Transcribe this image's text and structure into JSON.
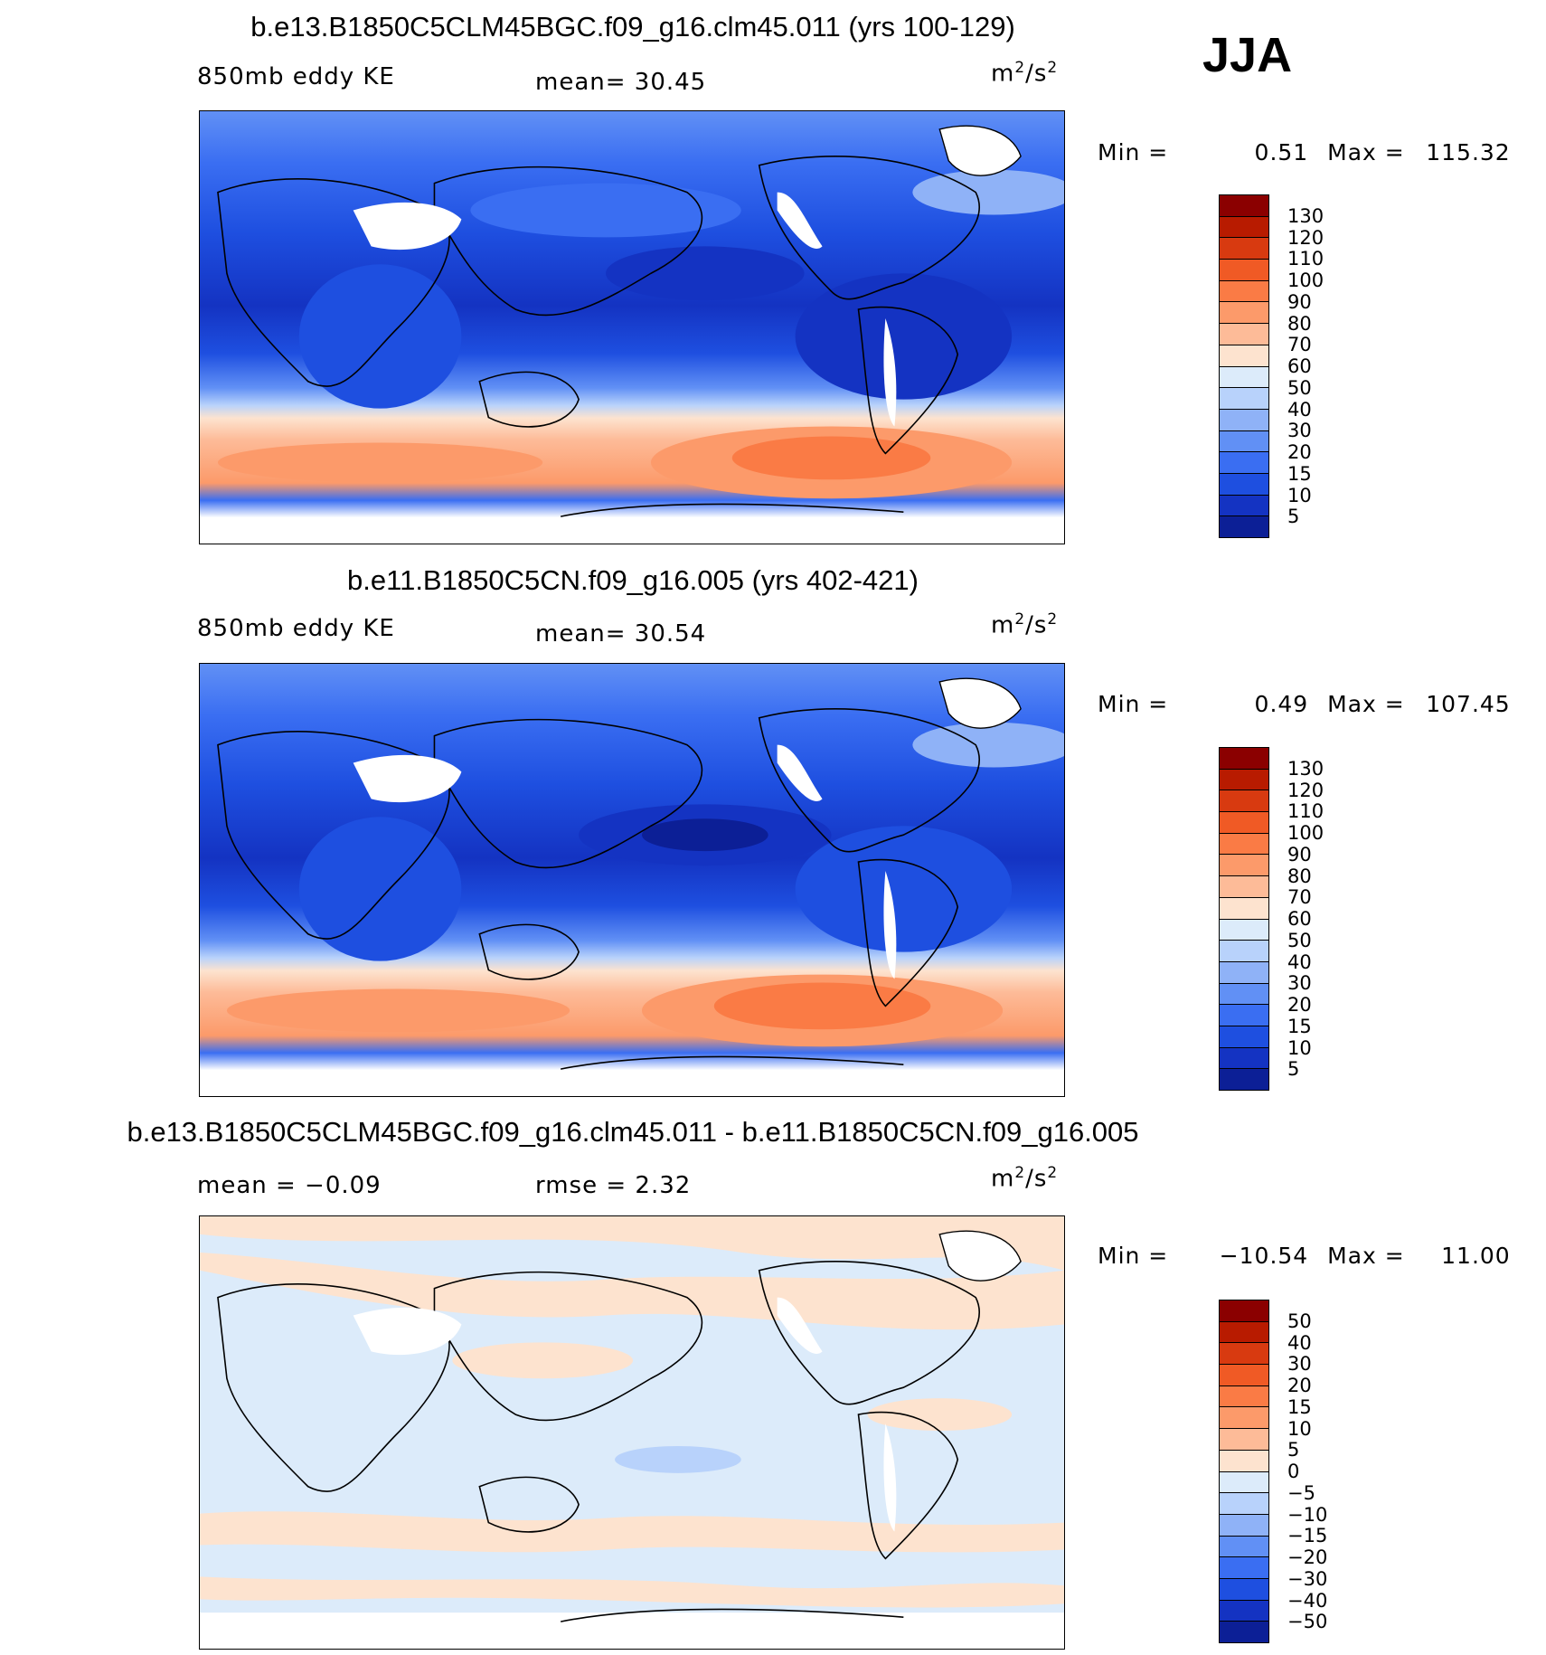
{
  "season": "JJA",
  "panels": [
    {
      "title": "b.e13.B1850C5CLM45BGC.f09_g16.clm45.011 (yrs 100-129)",
      "left_label": "850mb eddy KE",
      "stat_text": "mean=   30.45",
      "units_base": "m",
      "units_sup1": "2",
      "units_mid": "/s",
      "units_sup2": "2",
      "min_label": "Min =",
      "min_value": "0.51",
      "max_label": "Max =",
      "max_value": "115.32",
      "kind": "field",
      "colorbar_labels": [
        "130",
        "120",
        "110",
        "100",
        "90",
        "80",
        "70",
        "60",
        "50",
        "40",
        "30",
        "20",
        "15",
        "10",
        "5"
      ],
      "colorbar_colors": [
        "#8b0000",
        "#b81b00",
        "#d83a10",
        "#f05a25",
        "#fa7b45",
        "#fc9a6a",
        "#fdbb98",
        "#fde3cf",
        "#dcebfa",
        "#b8d2fb",
        "#8fb2f7",
        "#6190f5",
        "#3a6ef2",
        "#1e4fe0",
        "#1433c2",
        "#0c1f96"
      ]
    },
    {
      "title": "b.e11.B1850C5CN.f09_g16.005 (yrs 402-421)",
      "left_label": "850mb eddy KE",
      "stat_text": "mean=   30.54",
      "units_base": "m",
      "units_sup1": "2",
      "units_mid": "/s",
      "units_sup2": "2",
      "min_label": "Min =",
      "min_value": "0.49",
      "max_label": "Max =",
      "max_value": "107.45",
      "kind": "field",
      "colorbar_labels": [
        "130",
        "120",
        "110",
        "100",
        "90",
        "80",
        "70",
        "60",
        "50",
        "40",
        "30",
        "20",
        "15",
        "10",
        "5"
      ],
      "colorbar_colors": [
        "#8b0000",
        "#b81b00",
        "#d83a10",
        "#f05a25",
        "#fa7b45",
        "#fc9a6a",
        "#fdbb98",
        "#fde3cf",
        "#dcebfa",
        "#b8d2fb",
        "#8fb2f7",
        "#6190f5",
        "#3a6ef2",
        "#1e4fe0",
        "#1433c2",
        "#0c1f96"
      ]
    },
    {
      "title": "b.e13.B1850C5CLM45BGC.f09_g16.clm45.011 - b.e11.B1850C5CN.f09_g16.005",
      "left_label": "mean =   −0.09",
      "stat_text": "rmse =     2.32",
      "units_base": "m",
      "units_sup1": "2",
      "units_mid": "/s",
      "units_sup2": "2",
      "min_label": "Min =",
      "min_value": "−10.54",
      "max_label": "Max =",
      "max_value": "11.00",
      "kind": "diff",
      "colorbar_labels": [
        "50",
        "40",
        "30",
        "20",
        "15",
        "10",
        "5",
        "0",
        "−5",
        "−10",
        "−15",
        "−20",
        "−30",
        "−40",
        "−50"
      ],
      "colorbar_colors": [
        "#8b0000",
        "#b81b00",
        "#d83a10",
        "#f05a25",
        "#fa7b45",
        "#fc9a6a",
        "#fdbb98",
        "#fde3cf",
        "#dcebfa",
        "#b8d2fb",
        "#8fb2f7",
        "#6190f5",
        "#3a6ef2",
        "#1e4fe0",
        "#1433c2",
        "#0c1f96"
      ]
    }
  ]
}
